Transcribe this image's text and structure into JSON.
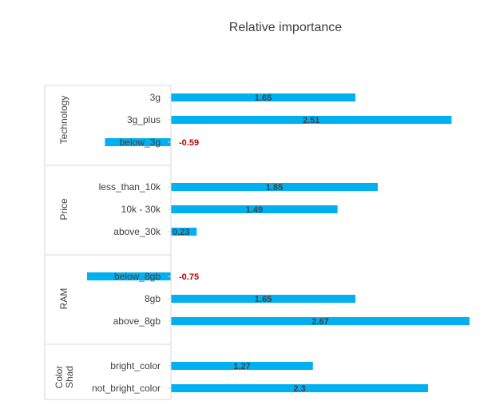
{
  "chart_data": {
    "type": "bar",
    "orientation": "horizontal",
    "title": "Relative importance",
    "bar_color": "#00B0F0",
    "negative_label_color": "#C00000",
    "grid": false,
    "legend": "none",
    "groups": [
      {
        "name": "Technology",
        "items": [
          {
            "label": "3g",
            "value": 1.65
          },
          {
            "label": "3g_plus",
            "value": 2.51
          },
          {
            "label": "below_3g",
            "value": -0.59
          }
        ]
      },
      {
        "name": "Price",
        "items": [
          {
            "label": "less_than_10k",
            "value": 1.85
          },
          {
            "label": "10k - 30k",
            "value": 1.49
          },
          {
            "label": "above_30k",
            "value": 0.23
          }
        ]
      },
      {
        "name": "RAM",
        "items": [
          {
            "label": "below_8gb",
            "value": -0.75
          },
          {
            "label": "8gb",
            "value": 1.65
          },
          {
            "label": "above_8gb",
            "value": 2.67
          }
        ]
      },
      {
        "name": "Color Shad",
        "name_lines": [
          "Color",
          "Shad"
        ],
        "items": [
          {
            "label": "bright_color",
            "value": 1.27
          },
          {
            "label": "not_bright_color",
            "value": 2.3
          }
        ]
      }
    ]
  }
}
